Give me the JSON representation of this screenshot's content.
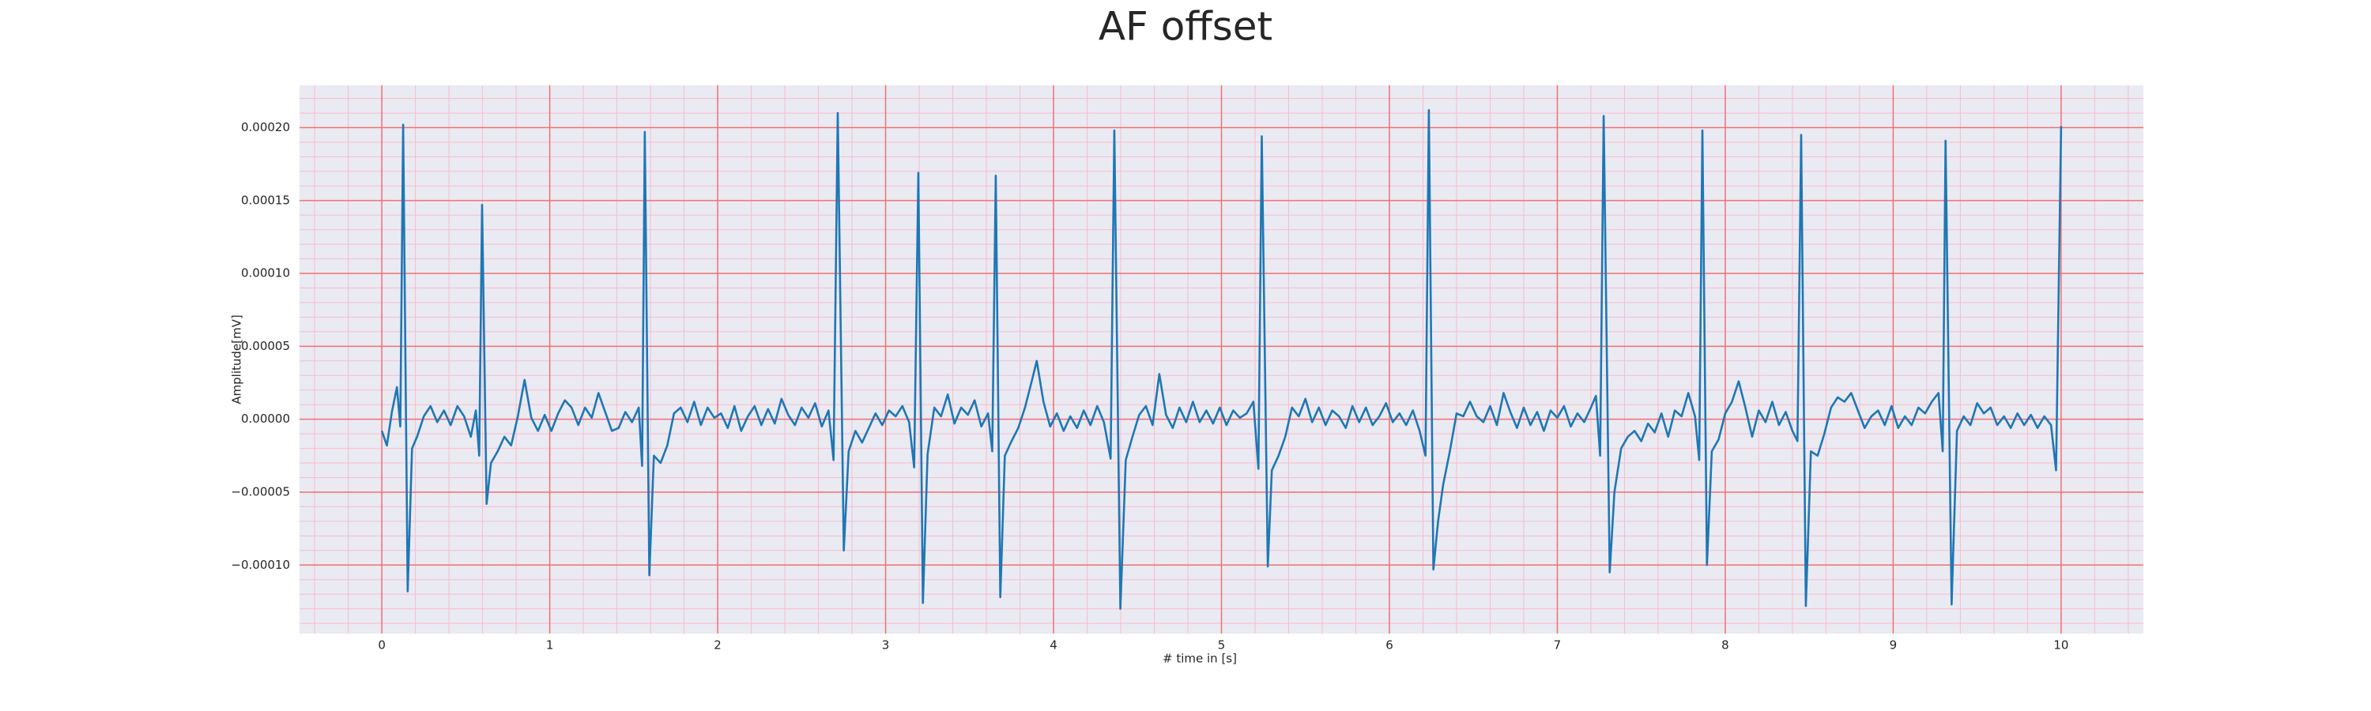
{
  "chart_data": {
    "type": "line",
    "title": "AF offset",
    "xlabel": "# time in [s]",
    "ylabel": "Amplitude[mV]",
    "color": "#1f77b4",
    "background": "#eaeaf2",
    "grid": true,
    "grid_color": "#f07070",
    "minor_grid": true,
    "minor_grid_color": "#f8bccb",
    "xlim": [
      -0.49,
      10.49
    ],
    "ylim": [
      -0.000147,
      0.000229
    ],
    "xticks": [
      0,
      1,
      2,
      3,
      4,
      5,
      6,
      7,
      8,
      9,
      10
    ],
    "yticks": [
      {
        "value": 0.0002,
        "label": "0.00020"
      },
      {
        "value": 0.00015,
        "label": "0.00015"
      },
      {
        "value": 0.0001,
        "label": "0.00010"
      },
      {
        "value": 5e-05,
        "label": "0.00005"
      },
      {
        "value": 0,
        "label": "0.00000"
      },
      {
        "value": -5e-05,
        "label": "−0.00005"
      },
      {
        "value": -0.0001,
        "label": "−0.00010"
      }
    ],
    "x": [
      0,
      0.03,
      0.06,
      0.09,
      0.11,
      0.127,
      0.154,
      0.18,
      0.21,
      0.25,
      0.29,
      0.33,
      0.37,
      0.41,
      0.45,
      0.49,
      0.53,
      0.56,
      0.58,
      0.597,
      0.624,
      0.65,
      0.69,
      0.73,
      0.77,
      0.81,
      0.85,
      0.89,
      0.93,
      0.97,
      1.01,
      1.05,
      1.09,
      1.13,
      1.17,
      1.21,
      1.25,
      1.29,
      1.33,
      1.37,
      1.41,
      1.45,
      1.49,
      1.53,
      1.55,
      1.566,
      1.593,
      1.62,
      1.66,
      1.7,
      1.74,
      1.78,
      1.82,
      1.86,
      1.9,
      1.94,
      1.98,
      2.02,
      2.06,
      2.1,
      2.14,
      2.18,
      2.22,
      2.26,
      2.3,
      2.34,
      2.38,
      2.42,
      2.46,
      2.5,
      2.54,
      2.58,
      2.62,
      2.66,
      2.69,
      2.715,
      2.751,
      2.78,
      2.82,
      2.86,
      2.9,
      2.94,
      2.98,
      3.02,
      3.06,
      3.1,
      3.14,
      3.17,
      3.195,
      3.222,
      3.25,
      3.29,
      3.33,
      3.37,
      3.41,
      3.45,
      3.49,
      3.53,
      3.57,
      3.61,
      3.635,
      3.656,
      3.683,
      3.71,
      3.75,
      3.79,
      3.83,
      3.87,
      3.9,
      3.94,
      3.98,
      4.02,
      4.06,
      4.1,
      4.14,
      4.18,
      4.22,
      4.26,
      4.3,
      4.34,
      4.362,
      4.398,
      4.43,
      4.47,
      4.51,
      4.55,
      4.59,
      4.63,
      4.67,
      4.71,
      4.75,
      4.79,
      4.83,
      4.87,
      4.91,
      4.95,
      4.99,
      5.03,
      5.07,
      5.11,
      5.15,
      5.19,
      5.22,
      5.24,
      5.276,
      5.3,
      5.34,
      5.38,
      5.42,
      5.46,
      5.5,
      5.54,
      5.58,
      5.62,
      5.66,
      5.7,
      5.74,
      5.78,
      5.82,
      5.86,
      5.9,
      5.94,
      5.98,
      6.02,
      6.06,
      6.1,
      6.14,
      6.18,
      6.215,
      6.235,
      6.262,
      6.29,
      6.32,
      6.36,
      6.4,
      6.44,
      6.48,
      6.52,
      6.56,
      6.6,
      6.64,
      6.68,
      6.72,
      6.76,
      6.8,
      6.84,
      6.88,
      6.92,
      6.96,
      7.0,
      7.04,
      7.08,
      7.12,
      7.16,
      7.2,
      7.23,
      7.255,
      7.276,
      7.312,
      7.34,
      7.38,
      7.42,
      7.46,
      7.5,
      7.54,
      7.58,
      7.62,
      7.66,
      7.7,
      7.74,
      7.78,
      7.82,
      7.845,
      7.864,
      7.891,
      7.92,
      7.96,
      8.0,
      8.04,
      8.08,
      8.12,
      8.16,
      8.2,
      8.24,
      8.28,
      8.32,
      8.36,
      8.4,
      8.43,
      8.452,
      8.48,
      8.51,
      8.55,
      8.59,
      8.63,
      8.67,
      8.71,
      8.75,
      8.79,
      8.83,
      8.87,
      8.91,
      8.95,
      8.99,
      9.03,
      9.07,
      9.11,
      9.15,
      9.19,
      9.23,
      9.27,
      9.295,
      9.312,
      9.348,
      9.38,
      9.42,
      9.46,
      9.5,
      9.54,
      9.58,
      9.62,
      9.66,
      9.7,
      9.74,
      9.78,
      9.82,
      9.86,
      9.9,
      9.94,
      9.97,
      10.0
    ],
    "values": [
      -8e-06,
      -1.8e-05,
      5e-06,
      2.2e-05,
      -5e-06,
      0.000202,
      -0.000118,
      -2e-05,
      -1.2e-05,
      2e-06,
      9e-06,
      -2e-06,
      6e-06,
      -4e-06,
      9e-06,
      2e-06,
      -1.2e-05,
      6e-06,
      -2.5e-05,
      0.000147,
      -5.8e-05,
      -3e-05,
      -2.2e-05,
      -1.2e-05,
      -1.8e-05,
      2e-06,
      2.7e-05,
      1e-06,
      -8e-06,
      3e-06,
      -8e-06,
      4e-06,
      1.3e-05,
      8e-06,
      -4e-06,
      8e-06,
      1e-06,
      1.8e-05,
      5e-06,
      -8e-06,
      -6e-06,
      5e-06,
      -2e-06,
      8e-06,
      -3.2e-05,
      0.000197,
      -0.000107,
      -2.5e-05,
      -3e-05,
      -1.8e-05,
      4e-06,
      8e-06,
      -2e-06,
      1.2e-05,
      -4e-06,
      8e-06,
      1e-06,
      4e-06,
      -6e-06,
      9e-06,
      -8e-06,
      2e-06,
      9e-06,
      -4e-06,
      7e-06,
      -3e-06,
      1.4e-05,
      3e-06,
      -4e-06,
      8e-06,
      1e-06,
      1.1e-05,
      -5e-06,
      6e-06,
      -2.8e-05,
      0.00021,
      -9e-05,
      -2.2e-05,
      -8e-06,
      -1.6e-05,
      -6e-06,
      4e-06,
      -4e-06,
      6e-06,
      2e-06,
      9e-06,
      -2e-06,
      -3.3e-05,
      0.000169,
      -0.000126,
      -2.4e-05,
      8e-06,
      2e-06,
      1.7e-05,
      -3e-06,
      8e-06,
      3e-06,
      1.3e-05,
      -5e-06,
      4e-06,
      -2.2e-05,
      0.000167,
      -0.000122,
      -2.5e-05,
      -1.5e-05,
      -6e-06,
      8e-06,
      2.6e-05,
      4e-05,
      1.2e-05,
      -5e-06,
      4e-06,
      -8e-06,
      2e-06,
      -6e-06,
      6e-06,
      -4e-06,
      9e-06,
      -2e-06,
      -2.7e-05,
      0.000198,
      -0.00013,
      -2.8e-05,
      -1.2e-05,
      3e-06,
      9e-06,
      -4e-06,
      3.1e-05,
      3e-06,
      -6e-06,
      8e-06,
      -2e-06,
      1.2e-05,
      -2e-06,
      6e-06,
      -3e-06,
      8e-06,
      -4e-06,
      6e-06,
      1e-06,
      4e-06,
      1.2e-05,
      -3.4e-05,
      0.000194,
      -0.000101,
      -3.5e-05,
      -2.5e-05,
      -1.2e-05,
      8e-06,
      2e-06,
      1.4e-05,
      -2e-06,
      8e-06,
      -4e-06,
      6e-06,
      2e-06,
      -6e-06,
      9e-06,
      -2e-06,
      8e-06,
      -4e-06,
      2e-06,
      1.1e-05,
      -2e-06,
      4e-06,
      -4e-06,
      6e-06,
      -8e-06,
      -2.5e-05,
      0.000212,
      -0.000103,
      -7e-05,
      -4.5e-05,
      -2.2e-05,
      4e-06,
      2e-06,
      1.2e-05,
      2e-06,
      -2e-06,
      9e-06,
      -4e-06,
      1.8e-05,
      5e-06,
      -6e-06,
      8e-06,
      -4e-06,
      5e-06,
      -8e-06,
      6e-06,
      1e-06,
      9e-06,
      -5e-06,
      4e-06,
      -2e-06,
      8e-06,
      1.6e-05,
      -2.5e-05,
      0.000208,
      -0.000105,
      -5e-05,
      -2e-05,
      -1.2e-05,
      -8e-06,
      -1.5e-05,
      -3e-06,
      -9e-06,
      4e-06,
      -1.2e-05,
      6e-06,
      2e-06,
      1.8e-05,
      2e-06,
      -2.8e-05,
      0.000198,
      -0.0001,
      -2.2e-05,
      -1.4e-05,
      4e-06,
      1.2e-05,
      2.6e-05,
      8e-06,
      -1.2e-05,
      6e-06,
      -2e-06,
      1.2e-05,
      -4e-06,
      5e-06,
      -8e-06,
      -1.5e-05,
      0.000195,
      -0.000128,
      -2.2e-05,
      -2.5e-05,
      -1e-05,
      8e-06,
      1.5e-05,
      1.2e-05,
      1.8e-05,
      6e-06,
      -6e-06,
      2e-06,
      6e-06,
      -4e-06,
      9e-06,
      -6e-06,
      2e-06,
      -4e-06,
      8e-06,
      4e-06,
      1.2e-05,
      1.8e-05,
      -2.2e-05,
      0.000191,
      -0.000127,
      -8e-06,
      2e-06,
      -4e-06,
      1.1e-05,
      4e-06,
      8e-06,
      -4e-06,
      2e-06,
      -6e-06,
      4e-06,
      -4e-06,
      3e-06,
      -6e-06,
      2e-06,
      -4e-06,
      -3.5e-05,
      0.000201
    ]
  }
}
